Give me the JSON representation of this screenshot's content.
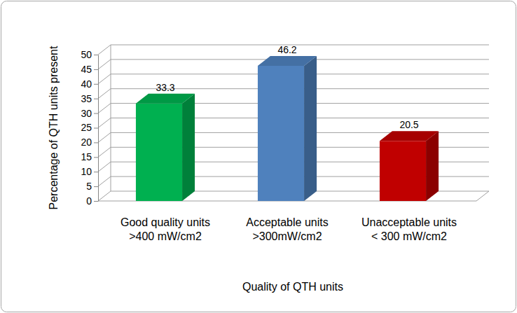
{
  "chart_data": {
    "type": "bar",
    "categories": [
      "Good quality units >400 mW/cm2",
      "Acceptable units >300mW/cm2",
      "Unacceptable units < 300 mW/cm2"
    ],
    "values": [
      33.3,
      46.2,
      20.5
    ],
    "colors": [
      "#00b050",
      "#4f81bd",
      "#c00000"
    ],
    "x_label": "Quality of QTH units",
    "y_label": "Percentage of QTH units present",
    "ylim": [
      0,
      50
    ],
    "yticks": [
      0,
      5,
      10,
      15,
      20,
      25,
      30,
      35,
      40,
      45,
      50
    ],
    "grid": true,
    "data_labels": true
  }
}
